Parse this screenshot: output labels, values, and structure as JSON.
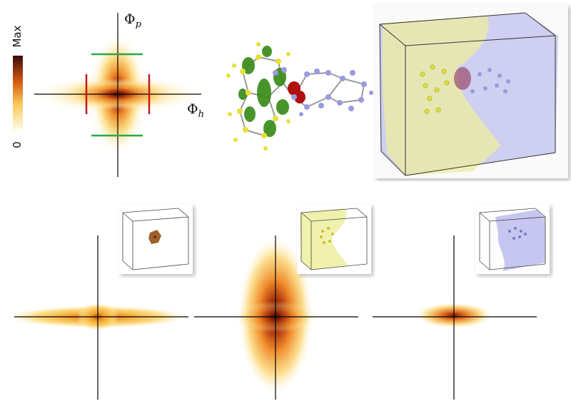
{
  "colorbar": {
    "max_label": "Max",
    "min_label": "0"
  },
  "axes": {
    "phi_p": "Φ",
    "phi_p_sub": "p",
    "phi_h": "Φ",
    "phi_h_sub": "h"
  },
  "colors": {
    "colormap_high": "#3a0a0a",
    "colormap_mid": "#d45a10",
    "colormap_low": "#fff7d0",
    "green_marker": "#2aa84a",
    "red_marker": "#c21818",
    "donor_yellow": "#e6e65a",
    "acceptor_blue": "#9a9ae0",
    "orbital_green": "#3a8a1a",
    "orbital_red": "#b01010",
    "inset_brown": "#a0602a"
  },
  "icons": [
    "molecule-orbital-icon",
    "cube-isosurface-icon"
  ]
}
